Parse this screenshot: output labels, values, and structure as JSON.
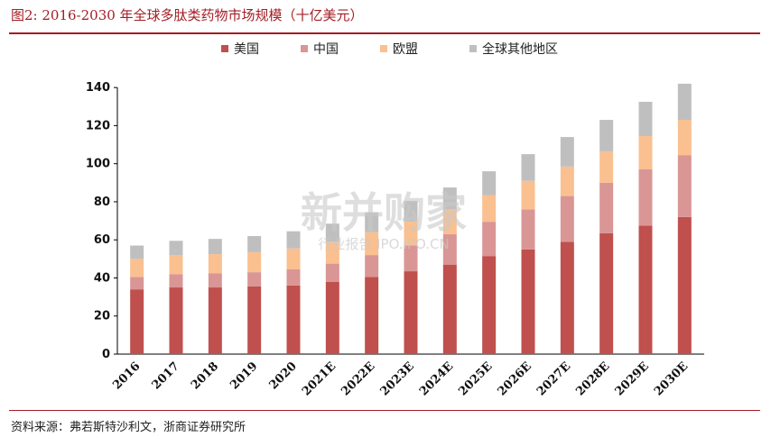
{
  "title": "图2:  2016-2030 年全球多肽类药物市场规模（十亿美元）",
  "source": "资料来源：弗若斯特沙利文，浙商证券研究所",
  "watermark": {
    "main": "新并购家",
    "sub": "行业报告 IPO.IPO.CN"
  },
  "colors": {
    "美国": "#c0504d",
    "中国": "#d99694",
    "欧盟": "#fac090",
    "全球其他地区": "#bfbfbf",
    "title": "#a31d24"
  },
  "chart_data": {
    "type": "bar",
    "stacked": true,
    "categories": [
      "2016",
      "2017",
      "2018",
      "2019",
      "2020",
      "2021E",
      "2022E",
      "2023E",
      "2024E",
      "2025E",
      "2026E",
      "2027E",
      "2028E",
      "2029E",
      "2030E"
    ],
    "series": [
      {
        "name": "美国",
        "values": [
          34,
          35,
          35,
          35.5,
          36,
          38,
          40.5,
          43.5,
          47,
          51.5,
          55,
          59,
          63.5,
          67.5,
          72
        ]
      },
      {
        "name": "中国",
        "values": [
          6.5,
          7,
          7.5,
          7.5,
          8.5,
          9.5,
          11.5,
          13.5,
          16,
          18,
          21,
          24,
          26.5,
          29.5,
          32.5
        ]
      },
      {
        "name": "欧盟",
        "values": [
          9.5,
          10,
          10,
          10.5,
          11,
          11.5,
          12,
          12.5,
          13,
          14,
          15,
          15.5,
          16.5,
          17.5,
          18.5
        ]
      },
      {
        "name": "全球其他地区",
        "values": [
          7,
          7.5,
          8,
          8.5,
          9,
          9.5,
          10.5,
          11,
          11.5,
          12.5,
          14,
          15.5,
          16.5,
          18,
          19
        ]
      }
    ],
    "yticks": [
      "0",
      "20",
      "40",
      "60",
      "80",
      "100",
      "120",
      "140"
    ],
    "ylim": [
      0,
      150
    ],
    "legend_position": "top"
  }
}
